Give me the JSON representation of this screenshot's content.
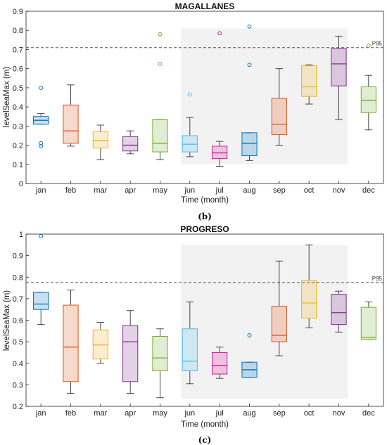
{
  "chart_data": [
    {
      "type": "box",
      "title": "MAGALLANES",
      "xlabel": "Time (month)",
      "ylabel": "levelSeaMax (m)",
      "ylim": [
        0,
        0.9
      ],
      "yticks": [
        "0",
        "0.1",
        "0.2",
        "0.3",
        "0.4",
        "0.5",
        "0.6",
        "0.7",
        "0.8",
        "0.9"
      ],
      "categories": [
        "jan",
        "feb",
        "mar",
        "apr",
        "may",
        "jun",
        "jul",
        "aug",
        "sep",
        "oct",
        "nov",
        "dec"
      ],
      "reference_line": {
        "label": "P95",
        "value": 0.71
      },
      "shaded_months": [
        "jun",
        "nov"
      ],
      "caption": "(b)",
      "boxes": [
        {
          "month": "jan",
          "min": 0.31,
          "q1": 0.31,
          "median": 0.33,
          "q3": 0.35,
          "max": 0.365,
          "outliers": [
            0.5,
            0.21,
            0.195
          ],
          "color": "#0072BD"
        },
        {
          "month": "feb",
          "min": 0.195,
          "q1": 0.21,
          "median": 0.275,
          "q3": 0.41,
          "max": 0.515,
          "outliers": [],
          "color": "#D95319"
        },
        {
          "month": "mar",
          "min": 0.125,
          "q1": 0.185,
          "median": 0.225,
          "q3": 0.27,
          "max": 0.305,
          "outliers": [],
          "color": "#EDB120"
        },
        {
          "month": "apr",
          "min": 0.155,
          "q1": 0.17,
          "median": 0.2,
          "q3": 0.245,
          "max": 0.275,
          "outliers": [],
          "color": "#7E2F8E"
        },
        {
          "month": "may",
          "min": 0.125,
          "q1": 0.165,
          "median": 0.21,
          "q3": 0.335,
          "max": 0.335,
          "outliers": [
            0.78,
            0.625
          ],
          "color": "#77AC30"
        },
        {
          "month": "jun",
          "min": 0.14,
          "q1": 0.165,
          "median": 0.205,
          "q3": 0.25,
          "max": 0.345,
          "outliers": [
            0.465
          ],
          "color": "#4DBEEE"
        },
        {
          "month": "jul",
          "min": 0.09,
          "q1": 0.13,
          "median": 0.16,
          "q3": 0.195,
          "max": 0.22,
          "outliers": [
            0.785
          ],
          "color": "#D61A9B"
        },
        {
          "month": "aug",
          "min": 0.12,
          "q1": 0.145,
          "median": 0.21,
          "q3": 0.265,
          "max": 0.265,
          "outliers": [
            0.82,
            0.62
          ],
          "color": "#0072BD"
        },
        {
          "month": "sep",
          "min": 0.2,
          "q1": 0.255,
          "median": 0.31,
          "q3": 0.445,
          "max": 0.6,
          "outliers": [],
          "color": "#D95319"
        },
        {
          "month": "oct",
          "min": 0.415,
          "q1": 0.455,
          "median": 0.505,
          "q3": 0.615,
          "max": 0.62,
          "outliers": [],
          "color": "#EDB120"
        },
        {
          "month": "nov",
          "min": 0.335,
          "q1": 0.51,
          "median": 0.625,
          "q3": 0.705,
          "max": 0.77,
          "outliers": [],
          "color": "#7E2F8E"
        },
        {
          "month": "dec",
          "min": 0.28,
          "q1": 0.37,
          "median": 0.435,
          "q3": 0.505,
          "max": 0.565,
          "outliers": [
            0.72
          ],
          "color": "#77AC30"
        }
      ]
    },
    {
      "type": "box",
      "title": "PROGRESO",
      "xlabel": "Time (month)",
      "ylabel": "levelSeaMax (m)",
      "ylim": [
        0.2,
        1
      ],
      "yticks": [
        "0.2",
        "0.3",
        "0.4",
        "0.5",
        "0.6",
        "0.7",
        "0.8",
        "0.9",
        "1"
      ],
      "categories": [
        "jan",
        "feb",
        "mar",
        "apr",
        "may",
        "jun",
        "jul",
        "aug",
        "sep",
        "oct",
        "nov",
        "dec"
      ],
      "reference_line": {
        "label": "P95",
        "value": 0.775
      },
      "shaded_months": [
        "jun",
        "nov"
      ],
      "caption": "(c)",
      "boxes": [
        {
          "month": "jan",
          "min": 0.58,
          "q1": 0.65,
          "median": 0.675,
          "q3": 0.73,
          "max": 0.73,
          "outliers": [
            0.99
          ],
          "color": "#0072BD"
        },
        {
          "month": "feb",
          "min": 0.26,
          "q1": 0.315,
          "median": 0.475,
          "q3": 0.67,
          "max": 0.74,
          "outliers": [],
          "color": "#D95319"
        },
        {
          "month": "mar",
          "min": 0.4,
          "q1": 0.42,
          "median": 0.485,
          "q3": 0.555,
          "max": 0.59,
          "outliers": [],
          "color": "#EDB120"
        },
        {
          "month": "apr",
          "min": 0.26,
          "q1": 0.315,
          "median": 0.5,
          "q3": 0.575,
          "max": 0.645,
          "outliers": [],
          "color": "#7E2F8E"
        },
        {
          "month": "may",
          "min": 0.24,
          "q1": 0.365,
          "median": 0.425,
          "q3": 0.525,
          "max": 0.56,
          "outliers": [],
          "color": "#77AC30"
        },
        {
          "month": "jun",
          "min": 0.305,
          "q1": 0.365,
          "median": 0.41,
          "q3": 0.56,
          "max": 0.685,
          "outliers": [],
          "color": "#4DBEEE"
        },
        {
          "month": "jul",
          "min": 0.33,
          "q1": 0.35,
          "median": 0.39,
          "q3": 0.45,
          "max": 0.475,
          "outliers": [],
          "color": "#D61A9B"
        },
        {
          "month": "aug",
          "min": 0.335,
          "q1": 0.335,
          "median": 0.37,
          "q3": 0.405,
          "max": 0.405,
          "outliers": [
            0.53
          ],
          "color": "#0072BD"
        },
        {
          "month": "sep",
          "min": 0.435,
          "q1": 0.5,
          "median": 0.53,
          "q3": 0.665,
          "max": 0.875,
          "outliers": [],
          "color": "#D95319"
        },
        {
          "month": "oct",
          "min": 0.565,
          "q1": 0.61,
          "median": 0.68,
          "q3": 0.785,
          "max": 0.95,
          "outliers": [],
          "color": "#EDB120"
        },
        {
          "month": "nov",
          "min": 0.545,
          "q1": 0.58,
          "median": 0.635,
          "q3": 0.72,
          "max": 0.735,
          "outliers": [],
          "color": "#7E2F8E"
        },
        {
          "month": "dec",
          "min": 0.51,
          "q1": 0.51,
          "median": 0.52,
          "q3": 0.66,
          "max": 0.685,
          "outliers": [],
          "color": "#77AC30"
        }
      ]
    }
  ]
}
